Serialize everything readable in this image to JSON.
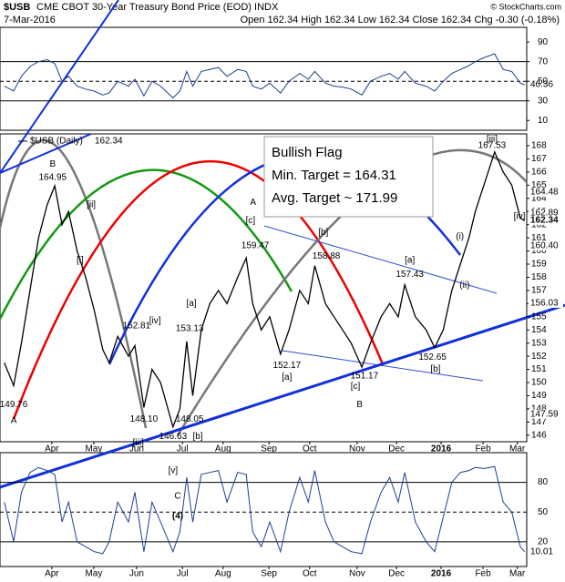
{
  "header": {
    "title": "$USB",
    "subtitle": "CME CBOT 30-Year Treasury Bond Price (EOD) INDX",
    "credit": "© StockCharts.com",
    "date": "7-Mar-2016",
    "ohlc": "Open 162.34 High 162.34 Low 162.34 Close 162.34 Chg -0.30 (-0.18%)"
  },
  "chart_data": {
    "type": "line",
    "x": [
      0.1,
      0.32,
      0.5,
      0.7,
      0.9,
      1.1,
      1.28,
      1.45,
      1.6,
      1.8,
      2.0,
      2.2,
      2.4,
      2.55,
      2.75,
      3.0,
      3.15,
      3.36,
      3.55,
      3.75,
      4.04,
      4.2,
      4.36,
      4.5,
      4.7,
      4.9,
      5.1,
      5.3,
      5.55,
      5.75,
      5.9,
      6.1,
      6.3,
      6.55,
      6.75,
      7.0,
      7.2,
      7.35,
      7.6,
      7.8,
      8.0,
      8.2,
      8.45,
      8.65,
      8.9,
      9.1,
      9.3,
      9.45,
      9.7,
      9.95,
      10.15,
      10.35,
      10.55,
      10.75,
      10.95,
      11.1,
      11.3,
      11.55,
      11.75,
      11.95,
      12.15,
      12.25
    ],
    "series": [
      {
        "name": "$USB (Daily)",
        "color": "#000000",
        "values": [
          151.5,
          149.76,
          153,
          157,
          161,
          163.5,
          164.95,
          162,
          163,
          160,
          158,
          155.5,
          152.5,
          151.5,
          153.5,
          152,
          152.81,
          148.1,
          151,
          150,
          146.63,
          148,
          153.13,
          149,
          154,
          156,
          157,
          156,
          158,
          159.47,
          156,
          154,
          155,
          152.17,
          154,
          157,
          156,
          158.88,
          156,
          155,
          154,
          153,
          151.17,
          153,
          155,
          156,
          155,
          157.43,
          155,
          154,
          152.65,
          154,
          157,
          159,
          161,
          163,
          165,
          167.53,
          166,
          165,
          162.5,
          162.34
        ]
      }
    ],
    "xlim": [
      0,
      12.3
    ],
    "xticks": [
      {
        "value": 1.21,
        "label": "Apr"
      },
      {
        "value": 2.19,
        "label": "May"
      },
      {
        "value": 3.19,
        "label": "Jun"
      },
      {
        "value": 4.26,
        "label": "Jul"
      },
      {
        "value": 5.21,
        "label": "Aug"
      },
      {
        "value": 6.28,
        "label": "Sep"
      },
      {
        "value": 7.23,
        "label": "Oct"
      },
      {
        "value": 8.34,
        "label": "Nov"
      },
      {
        "value": 9.26,
        "label": "Dec"
      },
      {
        "value": 10.3,
        "label": "2016"
      },
      {
        "value": 11.28,
        "label": "Feb"
      },
      {
        "value": 12.08,
        "label": "Mar"
      }
    ],
    "ylim": [
      145.5,
      168.9
    ],
    "yticks": [
      146,
      147,
      148,
      149,
      150,
      151,
      152,
      153,
      154,
      155,
      156,
      157,
      158,
      159,
      160,
      161,
      162,
      163,
      164,
      165,
      166,
      167,
      168
    ],
    "tags": [
      {
        "value": 164.48,
        "label": "164.48",
        "color": "#777777"
      },
      {
        "value": 162.89,
        "label": "162.89",
        "color": "#cc0000"
      },
      {
        "value": 162.34,
        "label": "162.34",
        "color": "#000000"
      },
      {
        "value": 160.4,
        "label": "160.40",
        "color": "#008800"
      },
      {
        "value": 156.03,
        "label": "156.03",
        "color": "#555555"
      },
      {
        "value": 147.59,
        "label": "147.59",
        "color": "#0000cc"
      }
    ],
    "annotations": [
      {
        "text": "A",
        "x": 0.32,
        "y": 147.1,
        "color": "#8000c0"
      },
      {
        "text": "A",
        "x": 5.91,
        "y": 163.7,
        "color": "#0000cc"
      },
      {
        "text": "B",
        "x": 1.23,
        "y": 166.6,
        "color": "#8000c0"
      },
      {
        "text": "B",
        "x": 8.4,
        "y": 148.3,
        "color": "#8000c0"
      },
      {
        "text": "[ii]",
        "x": 2.13,
        "y": 163.5,
        "color": "#cc0000"
      },
      {
        "text": "[i]",
        "x": 1.87,
        "y": 159.3,
        "color": "#cc0000"
      },
      {
        "text": "[iv]",
        "x": 3.62,
        "y": 154.7,
        "color": "#cc0000"
      },
      {
        "text": "[a]",
        "x": 4.47,
        "y": 156.0,
        "color": "#cc0000"
      },
      {
        "text": "[iii]",
        "x": 3.23,
        "y": 145.4,
        "color": "#cc0000"
      },
      {
        "text": "[b]",
        "x": 4.62,
        "y": 145.9,
        "color": "#cc0000"
      },
      {
        "text": "[c]",
        "x": 5.85,
        "y": 162.3,
        "color": "#cc0000"
      },
      {
        "text": "[a]",
        "x": 6.7,
        "y": 150.4,
        "color": "#cc0000"
      },
      {
        "text": "[b]",
        "x": 7.55,
        "y": 161.4,
        "color": "#cc0000"
      },
      {
        "text": "[c]",
        "x": 8.3,
        "y": 149.7,
        "color": "#cc0000"
      },
      {
        "text": "[a]",
        "x": 9.57,
        "y": 159.3,
        "color": "#cc0000"
      },
      {
        "text": "[b]",
        "x": 10.17,
        "y": 151.0,
        "color": "#cc0000"
      },
      {
        "text": "(i)",
        "x": 10.74,
        "y": 161.1,
        "color": "#008800"
      },
      {
        "text": "(ii)",
        "x": 10.85,
        "y": 157.4,
        "color": "#008800"
      },
      {
        "text": "[iii]",
        "x": 11.49,
        "y": 168.5,
        "color": "#008800"
      },
      {
        "text": "[iv]",
        "x": 12.13,
        "y": 162.6,
        "color": "#008800"
      },
      {
        "text": "149.76",
        "x": 0.32,
        "y": 148.3,
        "color": "#000000"
      },
      {
        "text": "164.95",
        "x": 1.23,
        "y": 165.6,
        "color": "#000000"
      },
      {
        "text": "152.81",
        "x": 3.19,
        "y": 154.3,
        "color": "#000000"
      },
      {
        "text": "148.10",
        "x": 3.36,
        "y": 147.2,
        "color": "#000000"
      },
      {
        "text": "153.13",
        "x": 4.43,
        "y": 154.1,
        "color": "#000000"
      },
      {
        "text": "146.63",
        "x": 4.04,
        "y": 145.9,
        "color": "#000000"
      },
      {
        "text": "148.05",
        "x": 4.43,
        "y": 147.2,
        "color": "#000000"
      },
      {
        "text": "159.47",
        "x": 5.96,
        "y": 160.4,
        "color": "#000000"
      },
      {
        "text": "152.17",
        "x": 6.7,
        "y": 151.3,
        "color": "#000000"
      },
      {
        "text": "158.88",
        "x": 7.62,
        "y": 159.6,
        "color": "#000000"
      },
      {
        "text": "151.17",
        "x": 8.51,
        "y": 150.5,
        "color": "#000000"
      },
      {
        "text": "157.43",
        "x": 9.57,
        "y": 158.2,
        "color": "#000000"
      },
      {
        "text": "152.65",
        "x": 10.1,
        "y": 151.9,
        "color": "#000000"
      },
      {
        "text": "167.53",
        "x": 11.49,
        "y": 168.0,
        "color": "#000000"
      }
    ],
    "callout": [
      "Bullish Flag",
      "Min. Target = 164.31",
      "Avg. Target ~ 171.99"
    ],
    "rsi": {
      "values": [
        45,
        40,
        55,
        65,
        70,
        72,
        68,
        50,
        55,
        45,
        42,
        40,
        36,
        38,
        50,
        45,
        52,
        35,
        50,
        45,
        33,
        40,
        60,
        45,
        60,
        62,
        64,
        55,
        62,
        60,
        45,
        42,
        48,
        38,
        50,
        58,
        52,
        60,
        48,
        45,
        44,
        42,
        36,
        50,
        55,
        58,
        52,
        60,
        48,
        45,
        40,
        50,
        58,
        62,
        66,
        70,
        74,
        78,
        62,
        60,
        48,
        46.36
      ],
      "value_label": "46.36",
      "ylim": [
        0,
        105
      ],
      "yticks": [
        90,
        70,
        50,
        30,
        10
      ],
      "levels": [
        70,
        50,
        30
      ],
      "color": "#1f3f8f"
    },
    "stochastic": {
      "values": [
        60,
        20,
        70,
        90,
        95,
        92,
        88,
        40,
        60,
        20,
        15,
        10,
        8,
        20,
        60,
        40,
        70,
        10,
        60,
        40,
        10,
        30,
        85,
        40,
        88,
        90,
        92,
        60,
        90,
        88,
        30,
        15,
        40,
        10,
        50,
        85,
        60,
        92,
        40,
        20,
        15,
        10,
        8,
        40,
        70,
        85,
        60,
        90,
        40,
        20,
        10,
        45,
        80,
        90,
        92,
        95,
        94,
        96,
        60,
        50,
        15,
        10.01
      ],
      "value_label": "10.01",
      "ylim": [
        -5,
        110
      ],
      "yticks": [
        80,
        50,
        20
      ],
      "color": "#1f3f8f",
      "annotations": [
        {
          "text": "[v]",
          "x": 4.04,
          "y": 91.6,
          "color": "#cc0000"
        },
        {
          "text": "C",
          "x": 4.15,
          "y": 65.8,
          "color": "#8000c0"
        },
        {
          "text": "(4)",
          "x": 4.15,
          "y": 45.6,
          "color": "#000000"
        }
      ]
    }
  }
}
